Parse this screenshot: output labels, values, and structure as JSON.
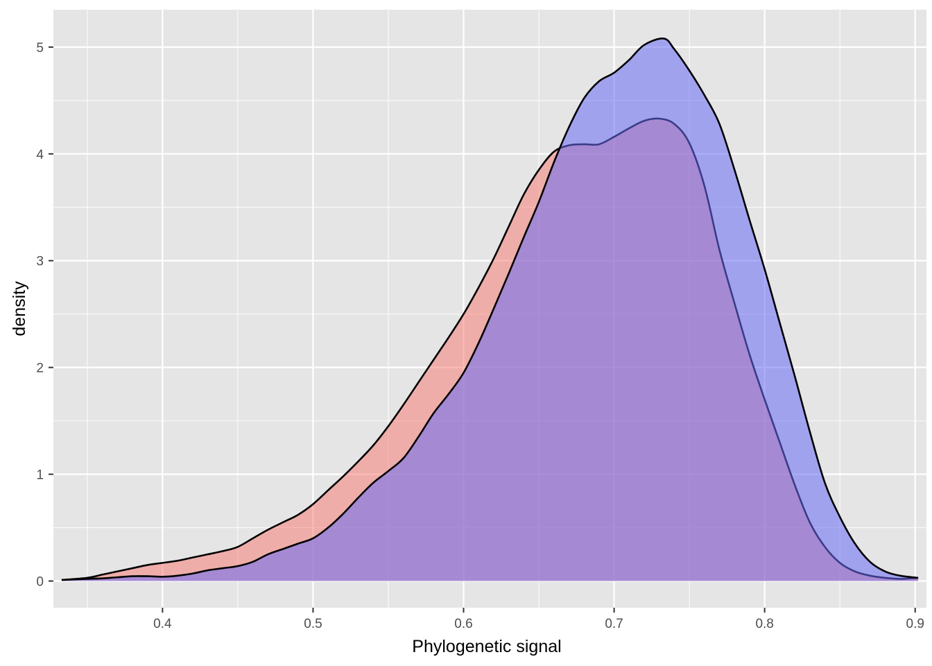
{
  "chart_data": {
    "type": "area",
    "title": "",
    "xlabel": "Phylogenetic signal",
    "ylabel": "density",
    "xlim": [
      0.3275,
      0.9075
    ],
    "ylim": [
      -0.25,
      5.35
    ],
    "x_ticks": [
      0.4,
      0.5,
      0.6,
      0.7,
      0.8,
      0.9
    ],
    "x_tick_labels": [
      "0.4",
      "0.5",
      "0.6",
      "0.7",
      "0.8",
      "0.9"
    ],
    "y_ticks": [
      0,
      1,
      2,
      3,
      4,
      5
    ],
    "y_tick_labels": [
      "0",
      "1",
      "2",
      "3",
      "4",
      "5"
    ],
    "grid": true,
    "legend": "none",
    "series": [
      {
        "color": "#f8766d",
        "fill_alpha": 0.5,
        "points": [
          [
            0.333,
            0.01
          ],
          [
            0.35,
            0.03
          ],
          [
            0.36,
            0.06
          ],
          [
            0.37,
            0.09
          ],
          [
            0.38,
            0.12
          ],
          [
            0.39,
            0.15
          ],
          [
            0.4,
            0.17
          ],
          [
            0.41,
            0.19
          ],
          [
            0.42,
            0.22
          ],
          [
            0.43,
            0.25
          ],
          [
            0.44,
            0.28
          ],
          [
            0.45,
            0.32
          ],
          [
            0.46,
            0.4
          ],
          [
            0.47,
            0.48
          ],
          [
            0.48,
            0.55
          ],
          [
            0.49,
            0.62
          ],
          [
            0.5,
            0.72
          ],
          [
            0.51,
            0.85
          ],
          [
            0.52,
            0.98
          ],
          [
            0.53,
            1.12
          ],
          [
            0.54,
            1.27
          ],
          [
            0.55,
            1.45
          ],
          [
            0.56,
            1.65
          ],
          [
            0.57,
            1.86
          ],
          [
            0.58,
            2.07
          ],
          [
            0.59,
            2.28
          ],
          [
            0.6,
            2.5
          ],
          [
            0.61,
            2.75
          ],
          [
            0.62,
            3.02
          ],
          [
            0.63,
            3.32
          ],
          [
            0.64,
            3.62
          ],
          [
            0.65,
            3.85
          ],
          [
            0.66,
            4.02
          ],
          [
            0.67,
            4.08
          ],
          [
            0.68,
            4.09
          ],
          [
            0.69,
            4.09
          ],
          [
            0.7,
            4.16
          ],
          [
            0.71,
            4.24
          ],
          [
            0.72,
            4.31
          ],
          [
            0.73,
            4.33
          ],
          [
            0.74,
            4.28
          ],
          [
            0.75,
            4.1
          ],
          [
            0.76,
            3.7
          ],
          [
            0.77,
            3.1
          ],
          [
            0.78,
            2.6
          ],
          [
            0.79,
            2.12
          ],
          [
            0.8,
            1.7
          ],
          [
            0.81,
            1.3
          ],
          [
            0.82,
            0.9
          ],
          [
            0.83,
            0.55
          ],
          [
            0.84,
            0.32
          ],
          [
            0.85,
            0.17
          ],
          [
            0.86,
            0.09
          ],
          [
            0.87,
            0.05
          ],
          [
            0.88,
            0.03
          ],
          [
            0.89,
            0.02
          ],
          [
            0.902,
            0.03
          ]
        ]
      },
      {
        "color": "#6a6cf5",
        "fill_alpha": 0.55,
        "points": [
          [
            0.333,
            0.01
          ],
          [
            0.35,
            0.02
          ],
          [
            0.36,
            0.025
          ],
          [
            0.37,
            0.035
          ],
          [
            0.38,
            0.045
          ],
          [
            0.39,
            0.045
          ],
          [
            0.4,
            0.04
          ],
          [
            0.41,
            0.05
          ],
          [
            0.42,
            0.07
          ],
          [
            0.43,
            0.1
          ],
          [
            0.44,
            0.12
          ],
          [
            0.45,
            0.14
          ],
          [
            0.46,
            0.18
          ],
          [
            0.47,
            0.25
          ],
          [
            0.48,
            0.3
          ],
          [
            0.49,
            0.35
          ],
          [
            0.5,
            0.4
          ],
          [
            0.51,
            0.5
          ],
          [
            0.52,
            0.63
          ],
          [
            0.53,
            0.78
          ],
          [
            0.54,
            0.92
          ],
          [
            0.55,
            1.03
          ],
          [
            0.56,
            1.15
          ],
          [
            0.57,
            1.35
          ],
          [
            0.58,
            1.57
          ],
          [
            0.59,
            1.75
          ],
          [
            0.6,
            1.95
          ],
          [
            0.61,
            2.23
          ],
          [
            0.62,
            2.55
          ],
          [
            0.63,
            2.88
          ],
          [
            0.64,
            3.22
          ],
          [
            0.65,
            3.55
          ],
          [
            0.66,
            3.92
          ],
          [
            0.67,
            4.25
          ],
          [
            0.68,
            4.52
          ],
          [
            0.69,
            4.68
          ],
          [
            0.7,
            4.76
          ],
          [
            0.71,
            4.88
          ],
          [
            0.72,
            5.02
          ],
          [
            0.733,
            5.08
          ],
          [
            0.74,
            4.98
          ],
          [
            0.75,
            4.78
          ],
          [
            0.76,
            4.55
          ],
          [
            0.77,
            4.28
          ],
          [
            0.78,
            3.85
          ],
          [
            0.79,
            3.38
          ],
          [
            0.8,
            2.92
          ],
          [
            0.81,
            2.42
          ],
          [
            0.82,
            1.92
          ],
          [
            0.83,
            1.4
          ],
          [
            0.84,
            0.92
          ],
          [
            0.85,
            0.6
          ],
          [
            0.86,
            0.35
          ],
          [
            0.87,
            0.18
          ],
          [
            0.88,
            0.09
          ],
          [
            0.89,
            0.05
          ],
          [
            0.902,
            0.03
          ]
        ]
      }
    ]
  }
}
